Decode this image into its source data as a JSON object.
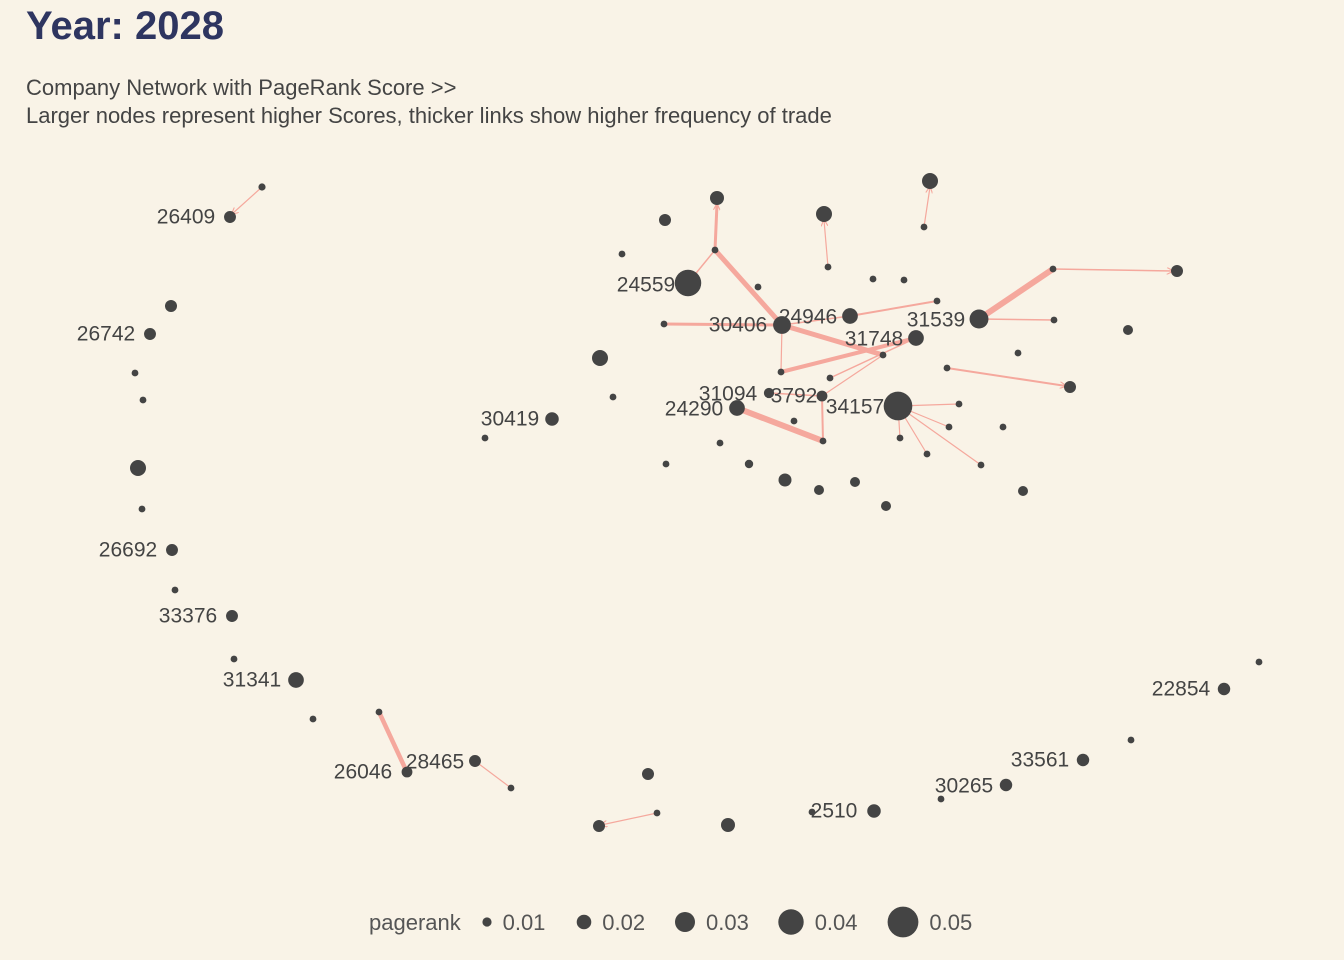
{
  "title": "Year: 2028",
  "subtitle_line1": "Company Network with PageRank Score >>",
  "subtitle_line2": "Larger nodes represent higher Scores, thicker links show higher frequency of trade",
  "colors": {
    "background": "#f9f3e7",
    "node": "#444444",
    "edge": "#f5a89d",
    "title": "#2e3560"
  },
  "legend": {
    "title": "pagerank",
    "items": [
      {
        "label": "0.01",
        "value": 0.01
      },
      {
        "label": "0.02",
        "value": 0.02
      },
      {
        "label": "0.03",
        "value": 0.03
      },
      {
        "label": "0.04",
        "value": 0.04
      },
      {
        "label": "0.05",
        "value": 0.05
      }
    ]
  },
  "nodes": [
    {
      "id": "26409",
      "label": "26409",
      "pagerank": 0.015
    },
    {
      "id": "26742",
      "label": "26742",
      "pagerank": 0.015
    },
    {
      "id": "26692",
      "label": "26692",
      "pagerank": 0.015
    },
    {
      "id": "33376",
      "label": "33376",
      "pagerank": 0.015
    },
    {
      "id": "31341",
      "label": "31341",
      "pagerank": 0.022
    },
    {
      "id": "26046",
      "label": "26046",
      "pagerank": 0.013
    },
    {
      "id": "28465",
      "label": "28465",
      "pagerank": 0.015
    },
    {
      "id": "30419",
      "label": "30419",
      "pagerank": 0.018
    },
    {
      "id": "24559",
      "label": "24559",
      "pagerank": 0.042
    },
    {
      "id": "30406",
      "label": "30406",
      "pagerank": 0.026
    },
    {
      "id": "24946",
      "label": "24946",
      "pagerank": 0.022
    },
    {
      "id": "31748",
      "label": "31748",
      "pagerank": 0.022
    },
    {
      "id": "31539",
      "label": "31539",
      "pagerank": 0.028
    },
    {
      "id": "31094",
      "label": "31094",
      "pagerank": 0.012
    },
    {
      "id": "3792",
      "label": "3792",
      "pagerank": 0.013
    },
    {
      "id": "24290",
      "label": "24290",
      "pagerank": 0.022
    },
    {
      "id": "34157",
      "label": "34157",
      "pagerank": 0.046
    },
    {
      "id": "2510",
      "label": "2510",
      "pagerank": 0.018
    },
    {
      "id": "30265",
      "label": "30265",
      "pagerank": 0.016
    },
    {
      "id": "33561",
      "label": "33561",
      "pagerank": 0.016
    },
    {
      "id": "22854",
      "label": "22854",
      "pagerank": 0.016
    }
  ]
}
